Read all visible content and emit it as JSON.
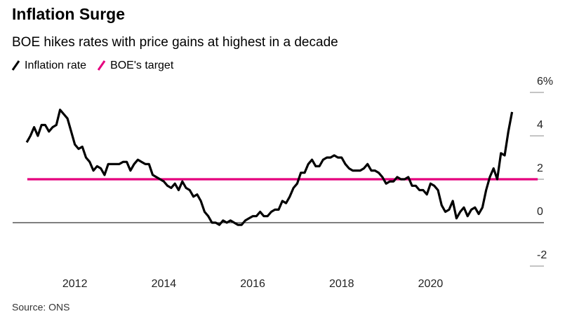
{
  "chart_data": {
    "type": "line",
    "title": "Inflation Surge",
    "subtitle": "BOE hikes rates with price gains at highest in a decade",
    "source": "Source: ONS",
    "xlim": [
      2010.6,
      2022.55
    ],
    "xticks": [
      2012,
      2014,
      2016,
      2018,
      2020
    ],
    "ylim": [
      -2,
      6
    ],
    "yticks": [
      {
        "value": 6,
        "label": "6%"
      },
      4,
      2,
      0,
      -2
    ],
    "series": [
      {
        "name": "Inflation rate",
        "color": "#000000",
        "x": [
          2010.917,
          2011,
          2011.083,
          2011.167,
          2011.25,
          2011.333,
          2011.417,
          2011.5,
          2011.583,
          2011.667,
          2011.75,
          2011.833,
          2011.917,
          2012,
          2012.083,
          2012.167,
          2012.25,
          2012.333,
          2012.417,
          2012.5,
          2012.583,
          2012.667,
          2012.75,
          2012.833,
          2012.917,
          2013,
          2013.083,
          2013.167,
          2013.25,
          2013.333,
          2013.417,
          2013.5,
          2013.583,
          2013.667,
          2013.75,
          2013.833,
          2013.917,
          2014,
          2014.083,
          2014.167,
          2014.25,
          2014.333,
          2014.417,
          2014.5,
          2014.583,
          2014.667,
          2014.75,
          2014.833,
          2014.917,
          2015,
          2015.083,
          2015.167,
          2015.25,
          2015.333,
          2015.417,
          2015.5,
          2015.583,
          2015.667,
          2015.75,
          2015.833,
          2015.917,
          2016,
          2016.083,
          2016.167,
          2016.25,
          2016.333,
          2016.417,
          2016.5,
          2016.583,
          2016.667,
          2016.75,
          2016.833,
          2016.917,
          2017,
          2017.083,
          2017.167,
          2017.25,
          2017.333,
          2017.417,
          2017.5,
          2017.583,
          2017.667,
          2017.75,
          2017.833,
          2017.917,
          2018,
          2018.083,
          2018.167,
          2018.25,
          2018.333,
          2018.417,
          2018.5,
          2018.583,
          2018.667,
          2018.75,
          2018.833,
          2018.917,
          2019,
          2019.083,
          2019.167,
          2019.25,
          2019.333,
          2019.417,
          2019.5,
          2019.583,
          2019.667,
          2019.75,
          2019.833,
          2019.917,
          2020,
          2020.083,
          2020.167,
          2020.25,
          2020.333,
          2020.417,
          2020.5,
          2020.583,
          2020.667,
          2020.75,
          2020.833,
          2020.917,
          2021,
          2021.083,
          2021.167,
          2021.25,
          2021.333,
          2021.417,
          2021.5,
          2021.583,
          2021.667,
          2021.75,
          2021.833
        ],
        "values": [
          3.7,
          4.0,
          4.4,
          4.0,
          4.5,
          4.5,
          4.2,
          4.4,
          4.5,
          5.2,
          5.0,
          4.8,
          4.2,
          3.6,
          3.4,
          3.5,
          3.0,
          2.8,
          2.4,
          2.6,
          2.5,
          2.2,
          2.7,
          2.7,
          2.7,
          2.7,
          2.8,
          2.8,
          2.4,
          2.7,
          2.9,
          2.8,
          2.7,
          2.7,
          2.2,
          2.1,
          2.0,
          1.9,
          1.7,
          1.6,
          1.8,
          1.5,
          1.9,
          1.6,
          1.5,
          1.2,
          1.3,
          1.0,
          0.5,
          0.3,
          0.0,
          0.0,
          -0.1,
          0.1,
          0.0,
          0.1,
          0.0,
          -0.1,
          -0.1,
          0.1,
          0.2,
          0.3,
          0.3,
          0.5,
          0.3,
          0.3,
          0.5,
          0.6,
          0.6,
          1.0,
          0.9,
          1.2,
          1.6,
          1.8,
          2.3,
          2.3,
          2.7,
          2.9,
          2.6,
          2.6,
          2.9,
          3.0,
          3.0,
          3.1,
          3.0,
          3.0,
          2.7,
          2.5,
          2.4,
          2.4,
          2.4,
          2.5,
          2.7,
          2.4,
          2.4,
          2.3,
          2.1,
          1.8,
          1.9,
          1.9,
          2.1,
          2.0,
          2.0,
          2.1,
          1.7,
          1.7,
          1.5,
          1.5,
          1.3,
          1.8,
          1.7,
          1.5,
          0.8,
          0.5,
          0.6,
          1.0,
          0.2,
          0.5,
          0.7,
          0.3,
          0.6,
          0.7,
          0.4,
          0.7,
          1.5,
          2.1,
          2.5,
          2.0,
          3.2,
          3.1,
          4.2,
          5.1
        ]
      },
      {
        "name": "BOE's target",
        "color": "#e5007e",
        "x": [
          2010.93,
          2022.41
        ],
        "values": [
          2,
          2
        ]
      }
    ]
  }
}
